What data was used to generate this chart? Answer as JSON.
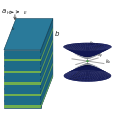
{
  "fig_width": 1.17,
  "fig_height": 1.24,
  "dpi": 100,
  "bg_color": "#ffffff",
  "box_top_color": "#2a7a9a",
  "box_front_color": "#1e6b88",
  "box_side_color": "#1a5c78",
  "layer_green": "#7ab648",
  "layer_blue": "#1e6b88",
  "hyperboloid_dark": "#1a237e",
  "hyperboloid_light": "#c5cae9",
  "sphere_color": "#43a047",
  "axis_color": "#999999",
  "text_color": "#222222",
  "arrow_color": "#444444",
  "n_layers": 10,
  "label_a": "a",
  "label_b": "b"
}
